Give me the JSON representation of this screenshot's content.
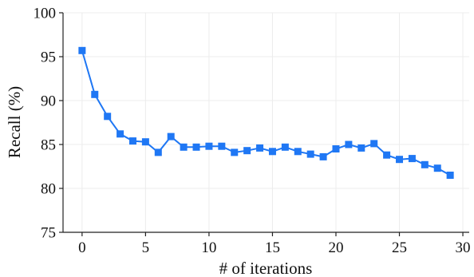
{
  "chart_data": {
    "type": "line",
    "title": "",
    "xlabel": "# of iterations",
    "ylabel": "Recall (%)",
    "xlim": [
      -1.5,
      30.5
    ],
    "ylim": [
      75,
      100
    ],
    "xticks": [
      0,
      5,
      10,
      15,
      20,
      25,
      30
    ],
    "yticks": [
      75,
      80,
      85,
      90,
      95,
      100
    ],
    "xtick_labels": [
      "0",
      "5",
      "10",
      "15",
      "20",
      "25",
      "30"
    ],
    "ytick_labels": [
      "75",
      "80",
      "85",
      "90",
      "95",
      "100"
    ],
    "grid": true,
    "marker": "square",
    "color": "#1f77f4",
    "series": [
      {
        "x": [
          0,
          1,
          2,
          3,
          4,
          5,
          6,
          7,
          8,
          9,
          10,
          11,
          12,
          13,
          14,
          15,
          16,
          17,
          18,
          19,
          20,
          21,
          22,
          23,
          24,
          25,
          26,
          27,
          28,
          29
        ],
        "values": [
          95.7,
          90.7,
          88.2,
          86.2,
          85.4,
          85.3,
          84.1,
          85.9,
          84.7,
          84.7,
          84.8,
          84.8,
          84.1,
          84.3,
          84.6,
          84.2,
          84.7,
          84.2,
          83.9,
          83.6,
          84.5,
          85.0,
          84.6,
          85.1,
          83.8,
          83.3,
          83.4,
          82.7,
          82.3,
          81.5
        ]
      }
    ]
  }
}
